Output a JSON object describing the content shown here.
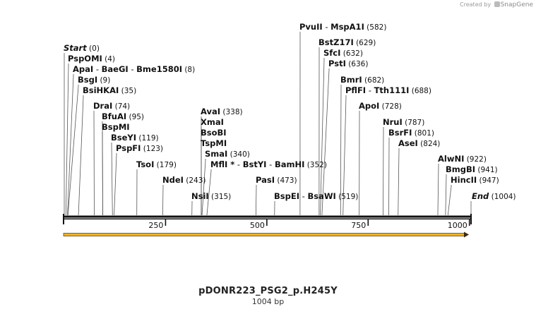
{
  "credit": {
    "prefix": "Created by",
    "brand": "SnapGene"
  },
  "sequence": {
    "name": "pDONR223_PSG2_p.H245Y",
    "length_label": "1004 bp",
    "length": 1004
  },
  "axis": {
    "ticks": [
      {
        "pos": 250,
        "label": "250"
      },
      {
        "pos": 500,
        "label": "500"
      },
      {
        "pos": 750,
        "label": "750"
      },
      {
        "pos": 1000,
        "label": "1000"
      }
    ]
  },
  "colors": {
    "backbone": "#111111",
    "feature_fill": "#f2b21d",
    "feature_stroke": "#5a4a2a",
    "leader": "#555555",
    "text": "#111111"
  },
  "sites": [
    {
      "name": "Start",
      "pos_label": "(0)",
      "pos": 0,
      "italic": true
    },
    {
      "name": "PspOMI",
      "pos_label": "(4)",
      "pos": 4
    },
    {
      "name": "ApaI",
      "extra": [
        "BaeGI",
        "Bme1580I"
      ],
      "pos_label": "(8)",
      "pos": 8
    },
    {
      "name": "BsgI",
      "pos_label": "(9)",
      "pos": 9
    },
    {
      "name": "BsiHKAI",
      "pos_label": "(35)",
      "pos": 35
    },
    {
      "name": "DraI",
      "pos_label": "(74)",
      "pos": 74
    },
    {
      "name": "BfuAI",
      "pos_label": "(95)",
      "pos": 95
    },
    {
      "name": "BspMI",
      "pos_label": "",
      "pos": 95
    },
    {
      "name": "BseYI",
      "pos_label": "(119)",
      "pos": 119
    },
    {
      "name": "PspFI",
      "pos_label": "(123)",
      "pos": 123
    },
    {
      "name": "TsoI",
      "pos_label": "(179)",
      "pos": 179
    },
    {
      "name": "NdeI",
      "pos_label": "(243)",
      "pos": 243
    },
    {
      "name": "NsiI",
      "pos_label": "(315)",
      "pos": 315
    },
    {
      "name": "AvaI",
      "pos_label": "(338)",
      "pos": 338
    },
    {
      "name": "XmaI",
      "pos_label": "",
      "pos": 338
    },
    {
      "name": "BsoBI",
      "pos_label": "",
      "pos": 338
    },
    {
      "name": "TspMI",
      "pos_label": "",
      "pos": 338
    },
    {
      "name": "SmaI",
      "pos_label": "(340)",
      "pos": 340
    },
    {
      "name": "MflI",
      "star": "*",
      "extra": [
        "BstYI",
        "BamHI"
      ],
      "pos_label": "(352)",
      "pos": 352
    },
    {
      "name": "PasI",
      "pos_label": "(473)",
      "pos": 473
    },
    {
      "name": "BspEI",
      "extra": [
        "BsaWI"
      ],
      "pos_label": "(519)",
      "pos": 519
    },
    {
      "name": "PvuII",
      "extra": [
        "MspA1I"
      ],
      "pos_label": "(582)",
      "pos": 582
    },
    {
      "name": "BstZ17I",
      "pos_label": "(629)",
      "pos": 629
    },
    {
      "name": "SfcI",
      "pos_label": "(632)",
      "pos": 632
    },
    {
      "name": "PstI",
      "pos_label": "(636)",
      "pos": 636
    },
    {
      "name": "BmrI",
      "pos_label": "(682)",
      "pos": 682
    },
    {
      "name": "PflFI",
      "extra": [
        "Tth111I"
      ],
      "pos_label": "(688)",
      "pos": 688
    },
    {
      "name": "ApoI",
      "pos_label": "(728)",
      "pos": 728
    },
    {
      "name": "NruI",
      "pos_label": "(787)",
      "pos": 787
    },
    {
      "name": "BsrFI",
      "pos_label": "(801)",
      "pos": 801
    },
    {
      "name": "AseI",
      "pos_label": "(824)",
      "pos": 824
    },
    {
      "name": "AlwNI",
      "pos_label": "(922)",
      "pos": 922
    },
    {
      "name": "BmgBI",
      "pos_label": "(941)",
      "pos": 941
    },
    {
      "name": "HincII",
      "pos_label": "(947)",
      "pos": 947
    },
    {
      "name": "End",
      "pos_label": "(1004)",
      "pos": 1004,
      "italic": true
    }
  ]
}
